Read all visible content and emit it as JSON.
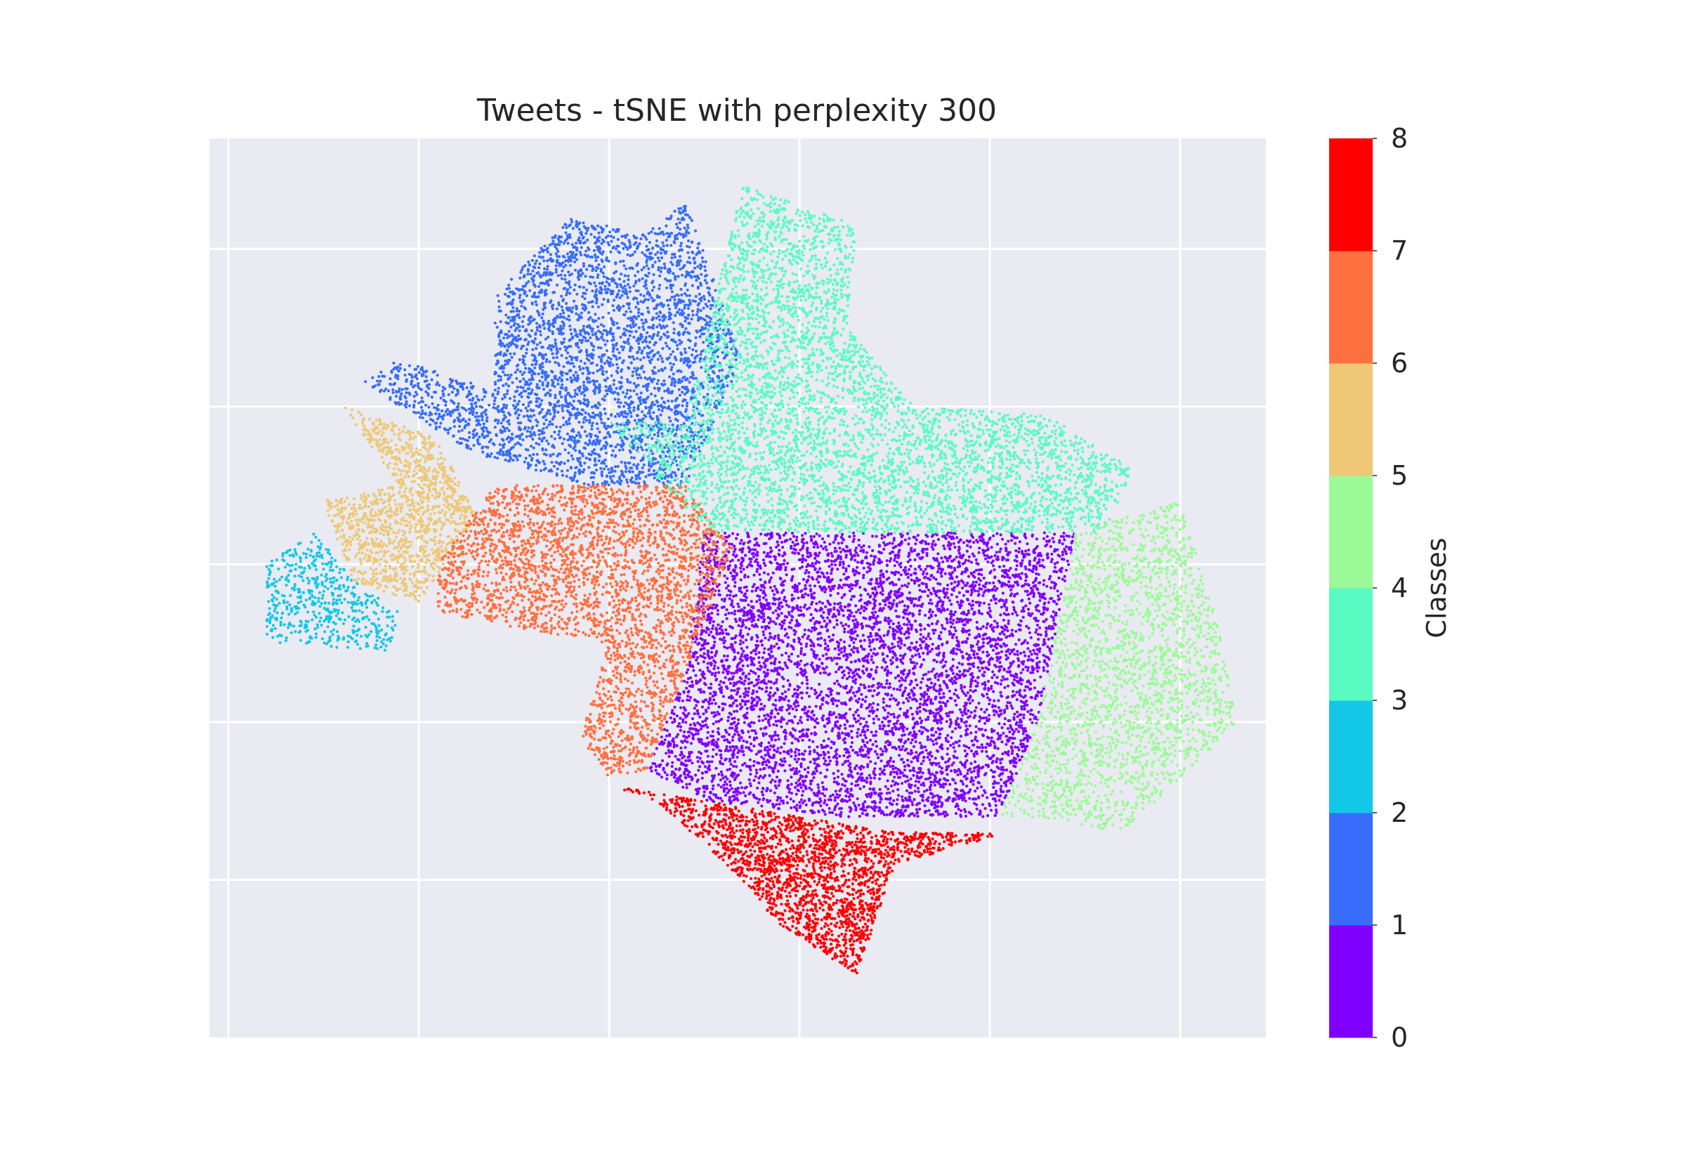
{
  "chart_data": {
    "type": "scatter",
    "title": "Tweets - tSNE with perplexity 300",
    "xlabel": "",
    "ylabel": "",
    "xlim": [
      -4.1,
      1.45
    ],
    "ylim": [
      -2.0,
      3.7
    ],
    "x_ticks": [
      -4,
      -3,
      -2,
      -1,
      0,
      1
    ],
    "y_ticks": [
      -1,
      0,
      1,
      2,
      3
    ],
    "x_tick_labels_shown": false,
    "y_tick_labels_shown": false,
    "grid": true,
    "background": "#eaeaf2",
    "colormap": "rainbow",
    "class_colors": [
      "#8000ff",
      "#386df9",
      "#12c8e6",
      "#5afbc2",
      "#9bfa97",
      "#eec877",
      "#ff7040",
      "#ff0000"
    ],
    "colorbar": {
      "label": "Classes",
      "ticks": [
        "0",
        "1",
        "2",
        "3",
        "4",
        "5",
        "6",
        "7",
        "8"
      ],
      "range": [
        0,
        8
      ]
    },
    "series": [
      {
        "class": 0,
        "color": "#8000ff",
        "approx_points": 6200,
        "region": [
          [
            -1.5,
            1.2
          ],
          [
            0.45,
            1.2
          ],
          [
            0.25,
            0
          ],
          [
            0.05,
            -0.6
          ],
          [
            -0.8,
            -0.6
          ],
          [
            -1.5,
            -0.5
          ],
          [
            -1.8,
            -0.3
          ],
          [
            -1.6,
            0.3
          ]
        ]
      },
      {
        "class": 1,
        "color": "#386df9",
        "approx_points": 3700,
        "region": [
          [
            -2.2,
            3.2
          ],
          [
            -1.8,
            3.1
          ],
          [
            -1.6,
            3.3
          ],
          [
            -1.3,
            2.3
          ],
          [
            -1.6,
            1.5
          ],
          [
            -2.1,
            1.5
          ],
          [
            -2.7,
            1.7
          ],
          [
            -3.3,
            2.15
          ],
          [
            -3.1,
            2.3
          ],
          [
            -2.6,
            2.1
          ],
          [
            -2.6,
            2.7
          ]
        ]
      },
      {
        "class": 2,
        "color": "#12c8e6",
        "approx_points": 520,
        "region": [
          [
            -3.55,
            1.2
          ],
          [
            -3.3,
            0.85
          ],
          [
            -3.1,
            0.7
          ],
          [
            -3.15,
            0.45
          ],
          [
            -3.8,
            0.5
          ],
          [
            -3.8,
            1.0
          ]
        ]
      },
      {
        "class": 3,
        "color": "#5afbc2",
        "approx_points": 4800,
        "region": [
          [
            -1.3,
            3.4
          ],
          [
            -0.7,
            3.15
          ],
          [
            -0.75,
            2.5
          ],
          [
            -0.4,
            2.0
          ],
          [
            0.3,
            1.95
          ],
          [
            0.75,
            1.6
          ],
          [
            0.6,
            1.2
          ],
          [
            -1.5,
            1.2
          ],
          [
            -2.0,
            1.9
          ],
          [
            -1.6,
            1.9
          ]
        ]
      },
      {
        "class": 4,
        "color": "#9bfa97",
        "approx_points": 2300,
        "region": [
          [
            0.45,
            1.2
          ],
          [
            1.0,
            1.4
          ],
          [
            1.2,
            0.6
          ],
          [
            1.3,
            0.0
          ],
          [
            0.7,
            -0.7
          ],
          [
            0.2,
            -0.6
          ],
          [
            0.05,
            -0.6
          ],
          [
            0.25,
            0
          ]
        ]
      },
      {
        "class": 5,
        "color": "#eec877",
        "approx_points": 1300,
        "region": [
          [
            -3.4,
            2.0
          ],
          [
            -2.9,
            1.8
          ],
          [
            -2.7,
            1.3
          ],
          [
            -3.0,
            0.75
          ],
          [
            -3.35,
            0.9
          ],
          [
            -3.5,
            1.4
          ],
          [
            -3.1,
            1.5
          ]
        ]
      },
      {
        "class": 6,
        "color": "#ff7040",
        "approx_points": 3100,
        "region": [
          [
            -2.6,
            1.5
          ],
          [
            -1.6,
            1.5
          ],
          [
            -1.35,
            1.1
          ],
          [
            -1.6,
            0.3
          ],
          [
            -1.8,
            -0.3
          ],
          [
            -2.0,
            -0.35
          ],
          [
            -2.15,
            -0.1
          ],
          [
            -2.0,
            0.5
          ],
          [
            -2.5,
            0.6
          ],
          [
            -2.9,
            0.7
          ],
          [
            -2.9,
            1.0
          ]
        ]
      },
      {
        "class": 7,
        "color": "#ff0000",
        "approx_points": 2000,
        "region": [
          [
            -2.0,
            -0.4
          ],
          [
            -1.0,
            -0.6
          ],
          [
            -0.5,
            -0.7
          ],
          [
            0.1,
            -0.7
          ],
          [
            -0.5,
            -0.9
          ],
          [
            -0.7,
            -1.6
          ],
          [
            -1.1,
            -1.3
          ],
          [
            -1.3,
            -1.0
          ],
          [
            -1.75,
            -0.5
          ]
        ]
      }
    ]
  }
}
